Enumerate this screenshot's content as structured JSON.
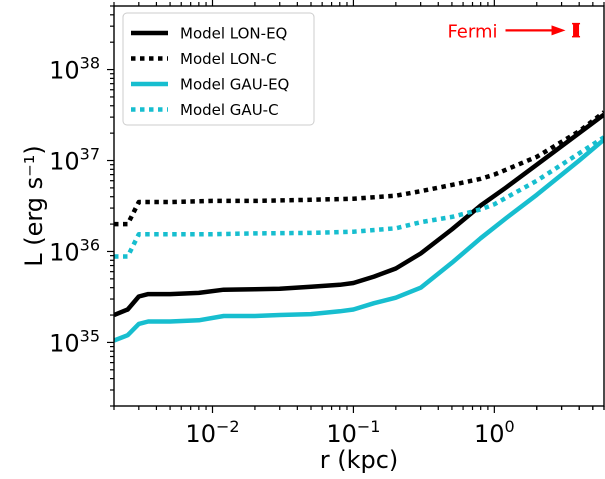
{
  "chart_data": {
    "type": "line",
    "xlabel": "r (kpc)",
    "ylabel": "L (erg s⁻¹)",
    "xscale": "log",
    "yscale": "log",
    "xlim": [
      0.002,
      6
    ],
    "ylim": [
      2e+34,
      5e+38
    ],
    "x_ticks": [
      {
        "value": 0.01,
        "mantissa": "10",
        "exponent": "−2"
      },
      {
        "value": 0.1,
        "mantissa": "10",
        "exponent": "−1"
      },
      {
        "value": 1,
        "mantissa": "10",
        "exponent": "0"
      }
    ],
    "y_ticks": [
      {
        "value": 1e+35,
        "mantissa": "10",
        "exponent": "35"
      },
      {
        "value": 1e+36,
        "mantissa": "10",
        "exponent": "36"
      },
      {
        "value": 1e+37,
        "mantissa": "10",
        "exponent": "37"
      },
      {
        "value": 1e+38,
        "mantissa": "10",
        "exponent": "38"
      }
    ],
    "legend_position": "top-left",
    "series": [
      {
        "name": "Model LON-EQ",
        "color": "#000000",
        "style": "solid",
        "x": [
          0.002,
          0.0025,
          0.003,
          0.0035,
          0.005,
          0.008,
          0.012,
          0.02,
          0.03,
          0.05,
          0.08,
          0.1,
          0.14,
          0.2,
          0.3,
          0.5,
          0.8,
          1.2,
          2,
          4,
          6
        ],
        "y": [
          2e+35,
          2.3e+35,
          3.2e+35,
          3.4e+35,
          3.4e+35,
          3.5e+35,
          3.8e+35,
          3.85e+35,
          3.9e+35,
          4.1e+35,
          4.3e+35,
          4.5e+35,
          5.3e+35,
          6.5e+35,
          9.5e+35,
          1.75e+36,
          3.2e+36,
          5e+36,
          9e+36,
          2e+37,
          3.2e+37
        ]
      },
      {
        "name": "Model LON-C",
        "color": "#000000",
        "style": "dotted",
        "x": [
          0.002,
          0.0025,
          0.003,
          0.005,
          0.01,
          0.02,
          0.05,
          0.1,
          0.2,
          0.3,
          0.5,
          0.8,
          1,
          2,
          4,
          6
        ],
        "y": [
          2e+36,
          2e+36,
          3.5e+36,
          3.5e+36,
          3.6e+36,
          3.6e+36,
          3.7e+36,
          3.8e+36,
          4.1e+36,
          4.6e+36,
          5.4e+36,
          6.3e+36,
          7e+36,
          1.1e+37,
          2.1e+37,
          3.4e+37
        ]
      },
      {
        "name": "Model GAU-EQ",
        "color": "#17becf",
        "style": "solid",
        "x": [
          0.002,
          0.0025,
          0.003,
          0.0035,
          0.005,
          0.008,
          0.012,
          0.02,
          0.03,
          0.05,
          0.08,
          0.1,
          0.14,
          0.2,
          0.3,
          0.5,
          0.8,
          1.2,
          2,
          4,
          6
        ],
        "y": [
          1.05e+35,
          1.2e+35,
          1.6e+35,
          1.7e+35,
          1.7e+35,
          1.75e+35,
          1.95e+35,
          1.95e+35,
          2e+35,
          2.05e+35,
          2.2e+35,
          2.3e+35,
          2.7e+35,
          3.1e+35,
          4e+35,
          7.5e+35,
          1.4e+36,
          2.3e+36,
          4.2e+36,
          1e+37,
          1.7e+37
        ]
      },
      {
        "name": "Model GAU-C",
        "color": "#17becf",
        "style": "dotted",
        "x": [
          0.002,
          0.0025,
          0.003,
          0.005,
          0.01,
          0.02,
          0.05,
          0.1,
          0.2,
          0.3,
          0.5,
          0.8,
          1,
          2,
          4,
          6
        ],
        "y": [
          8.8e+35,
          8.8e+35,
          1.55e+36,
          1.55e+36,
          1.55e+36,
          1.58e+36,
          1.6e+36,
          1.65e+36,
          1.8e+36,
          2.1e+36,
          2.4e+36,
          2.9e+36,
          3.3e+36,
          6e+36,
          1.2e+37,
          1.8e+37
        ]
      }
    ],
    "annotation": {
      "text": "Fermi",
      "color": "#ff0000",
      "arrow_x_from": 1.2,
      "arrow_x_to": 3.2,
      "arrow_y": 2.7e+38,
      "marker_x": 3.8,
      "marker_y": 2.7e+38,
      "marker_ymin": 2.3e+38,
      "marker_ymax": 3.2e+38
    }
  }
}
